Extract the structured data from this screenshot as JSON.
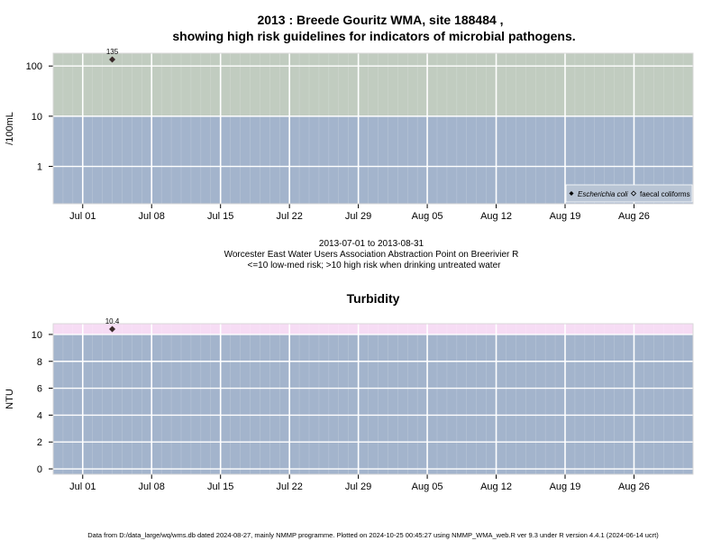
{
  "header": {
    "title_line1": "2013 : Breede Gouritz WMA, site 188484 ,",
    "title_line2": "showing high risk guidelines for indicators of microbial pathogens."
  },
  "info": {
    "date_range": "2013-07-01 to 2013-08-31",
    "location": "Worcester East Water Users Association Abstraction Point on Breerivier R",
    "risk_note": "<=10 low-med risk; >10 high risk when drinking untreated water"
  },
  "footer": "Data from D:/data_large/wq/wms.db dated 2024-08-27, mainly NMMP programme. Plotted on 2024-10-25 00:45:27 using NMMP_WMA_web.R ver 9.3 under R version 4.4.1 (2024-06-14 ucrt)",
  "colors": {
    "panel_bg": "#a3b4cc",
    "high_risk_micro": "#c1ccc0",
    "high_risk_turb": "#f6dcf4",
    "grid": "#ffffff",
    "point": "#3a2a2a"
  },
  "chart_data": [
    {
      "type": "scatter",
      "title": "",
      "ylabel": "/100mL",
      "y_scale": "log",
      "xlim": [
        "2013-06-28",
        "2013-09-01"
      ],
      "ylim": [
        0.18,
        180
      ],
      "x_ticks": [
        "2013-07-01",
        "2013-07-08",
        "2013-07-15",
        "2013-07-22",
        "2013-07-29",
        "2013-08-05",
        "2013-08-12",
        "2013-08-19",
        "2013-08-26"
      ],
      "x_tick_labels": [
        "Jul 01",
        "Jul 08",
        "Jul 15",
        "Jul 22",
        "Jul 29",
        "Aug 05",
        "Aug 12",
        "Aug 19",
        "Aug 26"
      ],
      "y_ticks": [
        1,
        10,
        100
      ],
      "y_tick_labels": [
        "1",
        "10",
        "100"
      ],
      "high_risk_threshold": 10,
      "grid": true,
      "legend_position": "bottom-right",
      "series": [
        {
          "name": "Escherichia coli",
          "points": [
            {
              "x": "2013-07-04",
              "y": 135,
              "label": "135"
            }
          ]
        },
        {
          "name": "faecal coliforms",
          "points": []
        }
      ]
    },
    {
      "type": "scatter",
      "title": "Turbidity",
      "ylabel": "NTU",
      "xlim": [
        "2013-06-28",
        "2013-09-01"
      ],
      "ylim": [
        -0.4,
        10.8
      ],
      "x_ticks": [
        "2013-07-01",
        "2013-07-08",
        "2013-07-15",
        "2013-07-22",
        "2013-07-29",
        "2013-08-05",
        "2013-08-12",
        "2013-08-19",
        "2013-08-26"
      ],
      "x_tick_labels": [
        "Jul 01",
        "Jul 08",
        "Jul 15",
        "Jul 22",
        "Jul 29",
        "Aug 05",
        "Aug 12",
        "Aug 19",
        "Aug 26"
      ],
      "y_ticks": [
        0,
        2,
        4,
        6,
        8,
        10
      ],
      "y_tick_labels": [
        "0",
        "2",
        "4",
        "6",
        "8",
        "10"
      ],
      "high_risk_threshold": 10,
      "grid": true,
      "series": [
        {
          "points": [
            {
              "x": "2013-07-04",
              "y": 10.4,
              "label": "10.4"
            }
          ]
        }
      ]
    }
  ]
}
